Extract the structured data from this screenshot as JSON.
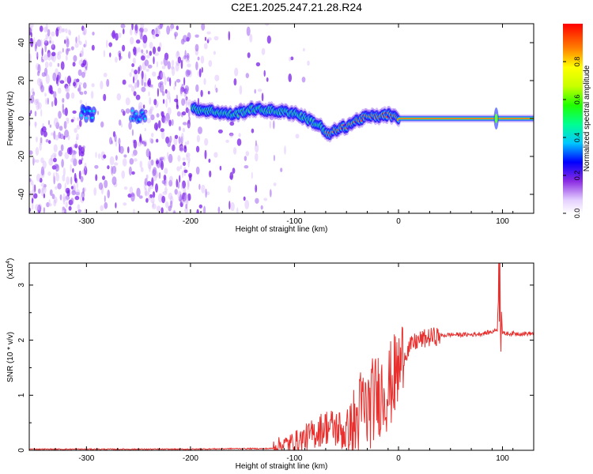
{
  "title": "C2E1.2025.247.21.28.R24",
  "chart_data": [
    {
      "type": "heatmap",
      "xlabel": "Height of straight line (km)",
      "ylabel": "Frequency (Hz)",
      "xlim": [
        -355,
        130
      ],
      "ylim": [
        -50,
        50
      ],
      "xticks": [
        -300,
        -200,
        -100,
        0,
        100
      ],
      "yticks": [
        -40,
        -20,
        0,
        20,
        40
      ],
      "xtick_labels": [
        "-300",
        "-200",
        "-100",
        "0",
        "100"
      ],
      "ytick_labels": [
        "-40",
        "-20",
        "0",
        "20",
        "40"
      ],
      "colorbar": {
        "label": "Normalized spectral amplitude",
        "range": [
          0,
          1
        ],
        "ticks": [
          0.0,
          0.2,
          0.4,
          0.6,
          0.8
        ],
        "tick_labels": [
          "0.0",
          "0.2",
          "0.4",
          "0.6",
          "0.8"
        ]
      },
      "ridge": {
        "x": [
          -300,
          -290,
          -250,
          -195,
          -180,
          -160,
          -140,
          -120,
          -100,
          -85,
          -75,
          -68,
          -60,
          -50,
          -40,
          -30,
          -20,
          -10,
          0,
          90,
          100,
          130
        ],
        "y": [
          3,
          1,
          2,
          5,
          4,
          2,
          5,
          4,
          3,
          -1,
          -4,
          -9,
          -6,
          -4,
          -1,
          1,
          1,
          2,
          0,
          0,
          0,
          0
        ]
      }
    },
    {
      "type": "line",
      "xlabel": "Height of straight line (km)",
      "ylabel": "SNR (10 * v/v)",
      "multiplier": "(x10",
      "multiplier_exp": "4",
      "xlim": [
        -355,
        130
      ],
      "ylim": [
        0,
        3.4
      ],
      "xticks": [
        -300,
        -200,
        -100,
        0,
        100
      ],
      "yticks": [
        0,
        1,
        2,
        3
      ],
      "xtick_labels": [
        "-300",
        "-200",
        "-100",
        "0",
        "100"
      ],
      "ytick_labels": [
        "0",
        "1",
        "2",
        "3"
      ],
      "series": [
        {
          "name": "SNR",
          "color": "#e8302e",
          "x": [
            -355,
            -300,
            -250,
            -200,
            -160,
            -130,
            -110,
            -100,
            -90,
            -80,
            -70,
            -60,
            -50,
            -40,
            -35,
            -30,
            -25,
            -20,
            -15,
            -10,
            -5,
            0,
            5,
            10,
            15,
            20,
            30,
            40,
            50,
            60,
            70,
            80,
            90,
            95,
            97,
            100,
            110,
            120,
            130
          ],
          "y": [
            0.02,
            0.02,
            0.02,
            0.02,
            0.03,
            0.03,
            0.04,
            0.06,
            0.12,
            0.2,
            0.3,
            0.25,
            0.15,
            0.5,
            0.8,
            0.7,
            0.9,
            1.0,
            1.1,
            1.1,
            1.3,
            1.45,
            1.7,
            1.85,
            1.95,
            2.0,
            2.05,
            2.08,
            2.1,
            2.1,
            2.1,
            2.12,
            2.15,
            2.2,
            3.3,
            2.12,
            2.12,
            2.12,
            2.12
          ]
        }
      ]
    }
  ]
}
